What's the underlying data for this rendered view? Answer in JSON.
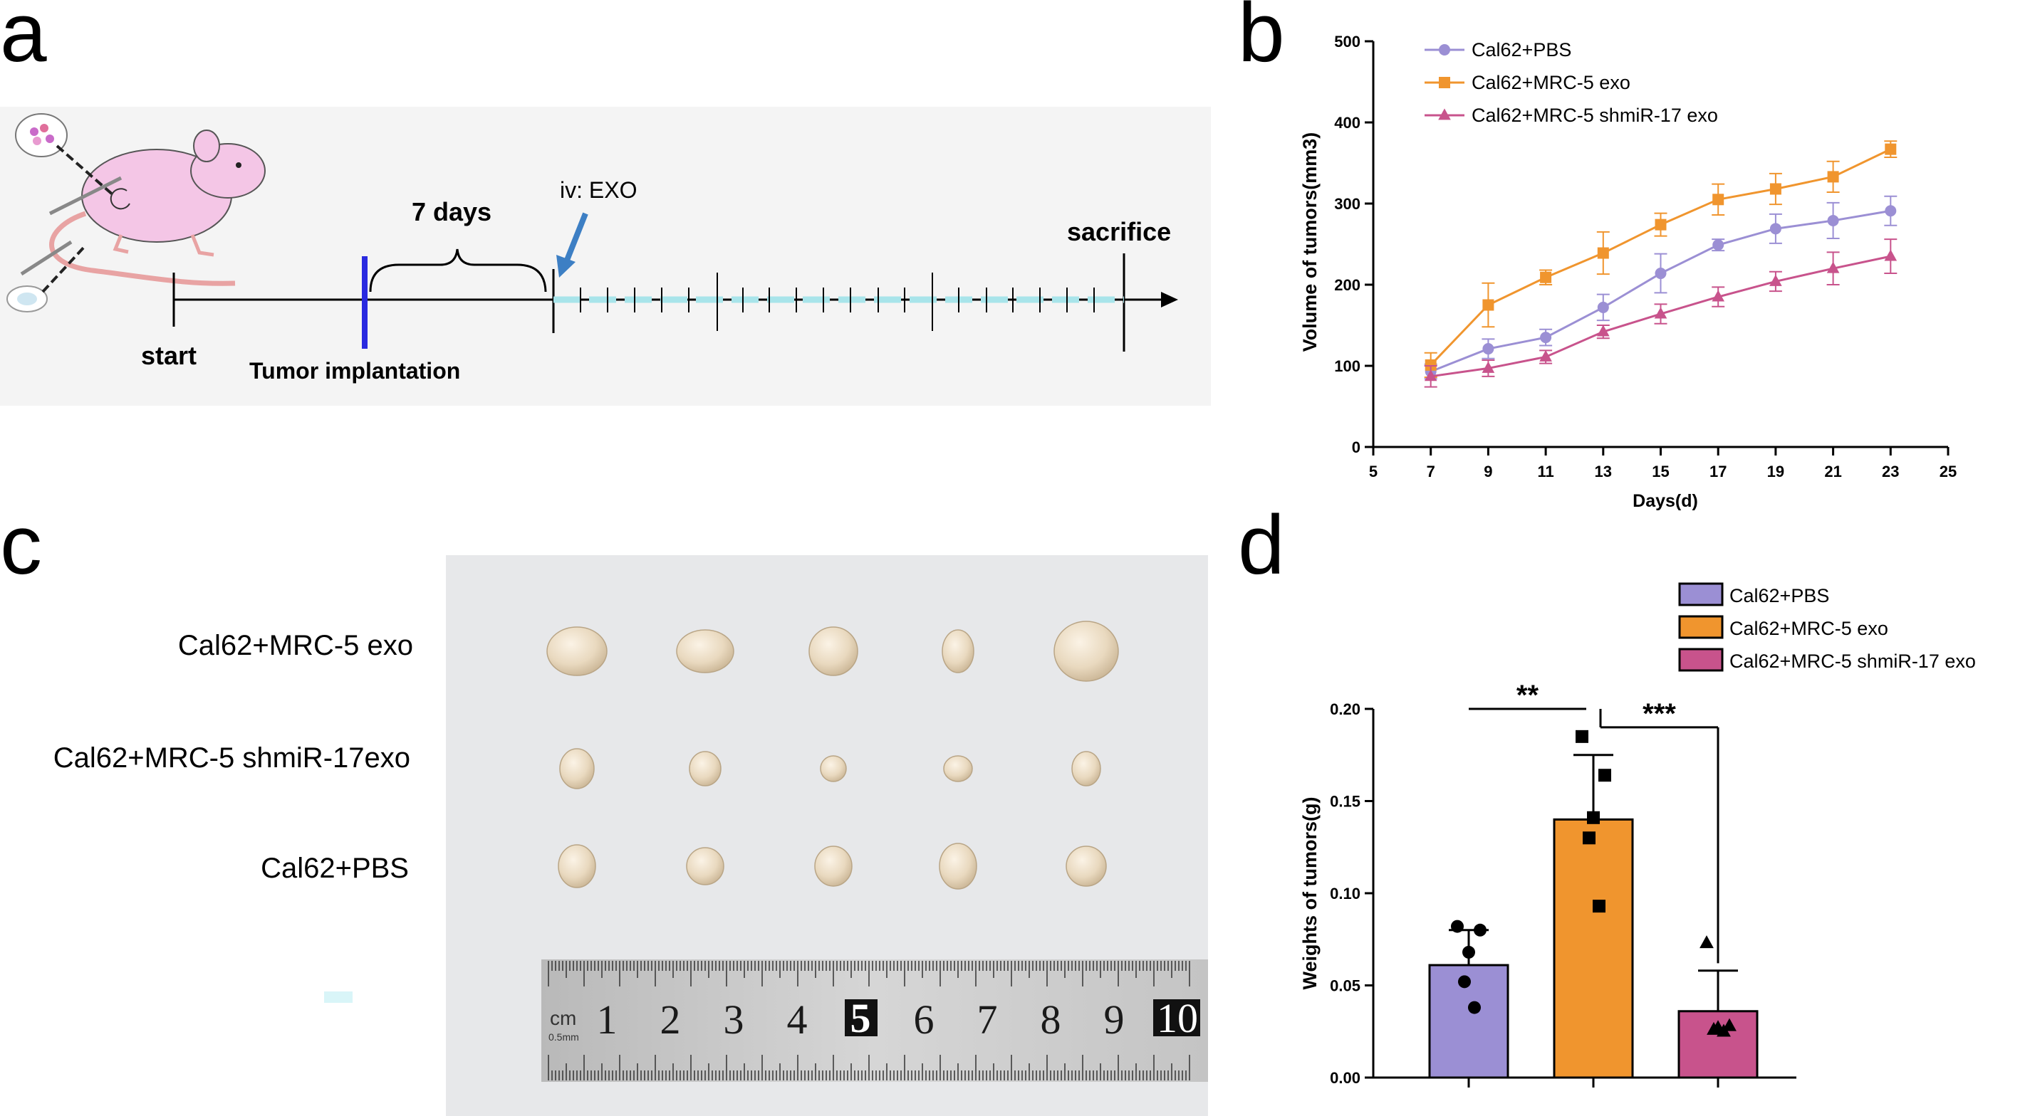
{
  "panels": {
    "a": "a",
    "b": "b",
    "c": "c",
    "d": "d"
  },
  "timeline": {
    "start_label": "start",
    "implant_label": "Tumor implantation",
    "days_label": "7 days",
    "injection_label": "iv: EXO",
    "sacrifice_label": "sacrifice"
  },
  "colors": {
    "pbs": "#9b8fd4",
    "mrc5": "#f0952e",
    "shmir": "#c8538c",
    "timeline_blue": "#2a2ae0",
    "dash_cyan": "#a8e4ea"
  },
  "chart_b": {
    "type": "line",
    "ylabel": "Volume of tumors(mm3)",
    "xlabel": "Days(d)",
    "xlim": [
      5,
      25
    ],
    "ylim": [
      0,
      500
    ],
    "x_ticks": [
      "5",
      "7",
      "9",
      "11",
      "13",
      "15",
      "17",
      "19",
      "21",
      "23",
      "25"
    ],
    "y_ticks": [
      "0",
      "100",
      "200",
      "300",
      "400",
      "500"
    ],
    "x": [
      7,
      9,
      11,
      13,
      15,
      17,
      19,
      21,
      23
    ],
    "series": [
      {
        "name": "Cal62+PBS",
        "marker": "circle",
        "values": [
          93,
          121,
          135,
          172,
          214,
          249,
          269,
          279,
          291
        ],
        "errors": [
          9,
          12,
          10,
          16,
          24,
          7,
          18,
          22,
          18
        ]
      },
      {
        "name": "Cal62+MRC-5 exo",
        "marker": "square",
        "values": [
          101,
          175,
          209,
          239,
          274,
          305,
          318,
          333,
          367
        ],
        "errors": [
          15,
          27,
          9,
          26,
          14,
          19,
          19,
          19,
          10
        ]
      },
      {
        "name": "Cal62+MRC-5 shmiR-17 exo",
        "marker": "triangle",
        "values": [
          87,
          97,
          111,
          142,
          164,
          185,
          204,
          220,
          235
        ],
        "errors": [
          13,
          10,
          8,
          8,
          12,
          12,
          12,
          20,
          21
        ]
      }
    ]
  },
  "photo_c": {
    "rows": [
      "Cal62+MRC-5 exo",
      "Cal62+MRC-5 shmiR-17exo",
      "Cal62+PBS"
    ],
    "ruler": {
      "unit": "cm",
      "numbers": [
        "1",
        "2",
        "3",
        "4",
        "5",
        "6",
        "7",
        "8",
        "9",
        "10"
      ],
      "sub_label": "0.5mm"
    }
  },
  "chart_d": {
    "type": "bar",
    "ylabel": "Weights of tumors(g)",
    "ylim": [
      0,
      0.2
    ],
    "y_ticks": [
      "0.00",
      "0.05",
      "0.10",
      "0.15",
      "0.20"
    ],
    "categories": [
      "Cal62+PBS",
      "Cal62+MRC-5 exo",
      "Cal62+MRC-5 shmiR-17 exo"
    ],
    "values": [
      0.061,
      0.14,
      0.036
    ],
    "errors": [
      0.019,
      0.035,
      0.022
    ],
    "points": [
      [
        0.082,
        0.08,
        0.068,
        0.052,
        0.038
      ],
      [
        0.185,
        0.164,
        0.141,
        0.13,
        0.093
      ],
      [
        0.073,
        0.028,
        0.027,
        0.026,
        0.025
      ]
    ],
    "significance": [
      {
        "label": "**",
        "between": [
          0,
          1
        ]
      },
      {
        "label": "***",
        "between": [
          1,
          2
        ]
      }
    ]
  }
}
